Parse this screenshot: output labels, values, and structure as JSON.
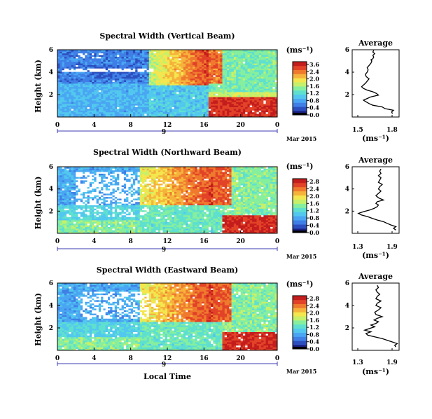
{
  "colormap": [
    "#1a1f80",
    "#2c4fbf",
    "#3f7fe6",
    "#4aa6f2",
    "#52c8ee",
    "#5fe0cf",
    "#86ef9e",
    "#c6f06a",
    "#f3e64e",
    "#f6b33c",
    "#ef7a2e",
    "#e24328",
    "#c41d1d"
  ],
  "fill_color": "#ffffff",
  "chart_data": [
    {
      "type": "heatmap",
      "title": "Spectral Width (Vertical Beam)",
      "xlabel": "",
      "ylabel": "Height (km)",
      "x_ticks": [
        "0",
        "4",
        "8",
        "12",
        "16",
        "20",
        "0"
      ],
      "x_range_hours": [
        0,
        24
      ],
      "y_ticks": [
        "6",
        "4",
        "2"
      ],
      "y_range_km": [
        0,
        6
      ],
      "date_label": "Mar 2015",
      "day_marker": "9",
      "colorbar": {
        "unit": "(ms⁻¹)",
        "ticks": [
          "3.6",
          "2.4",
          "2.0",
          "1.6",
          "1.2",
          "0.8",
          "0.4",
          "0.0"
        ],
        "range": [
          0,
          3.6
        ]
      },
      "pattern": "upper 0-10h near 0.4-0.8 with white no-data gaps at 4-5 km; 10-16h values 1.6-3.6 at 3-6 km; 17-24h red 2.8-3.6 below 2 km and yellow-green 1.2-1.6 above; lower levels 0-16h mostly 0.6-1.2"
    },
    {
      "type": "heatmap",
      "title": "Spectral Width (Northward Beam)",
      "xlabel": "",
      "ylabel": "Height (km)",
      "x_ticks": [
        "0",
        "4",
        "8",
        "12",
        "16",
        "20",
        "0"
      ],
      "x_range_hours": [
        0,
        24
      ],
      "y_ticks": [
        "6",
        "4",
        "2"
      ],
      "y_range_km": [
        0,
        6
      ],
      "date_label": "Mar 2015",
      "day_marker": "9",
      "colorbar": {
        "unit": "(ms⁻¹)",
        "ticks": [
          "2.8",
          "2.4",
          "2.0",
          "1.6",
          "1.2",
          "0.8",
          "0.4",
          "0.0"
        ],
        "range": [
          0,
          2.8
        ]
      },
      "pattern": "white no-data patches 1-9h at 3-6 km; 10-18h orange-red 2.0-2.8 at 3-6 km; 18-24h red 2.4-2.8 below 1.5 km; remainder 0.4-1.6"
    },
    {
      "type": "heatmap",
      "title": "Spectral Width (Eastward Beam)",
      "xlabel": "Local Time",
      "ylabel": "Height (km)",
      "x_ticks": [
        "0",
        "4",
        "8",
        "12",
        "16",
        "20",
        "0"
      ],
      "x_range_hours": [
        0,
        24
      ],
      "y_ticks": [
        "6",
        "4",
        "2"
      ],
      "y_range_km": [
        0,
        6
      ],
      "date_label": "Mar 2015",
      "day_marker": "9",
      "colorbar": {
        "unit": "(ms⁻¹)",
        "ticks": [
          "2.8",
          "2.4",
          "2.0",
          "1.6",
          "1.2",
          "0.8",
          "0.4",
          "0.0"
        ],
        "range": [
          0,
          2.8
        ]
      },
      "pattern": "white no-data patches 2-10h at 3-6 km; 10-18h orange 1.6-2.8 at 2.5-6 km; 16-24h red 2.4-2.8 below 1.5 km; remainder 0.4-1.6"
    },
    {
      "type": "line",
      "title": "Average",
      "xlabel": "(ms⁻¹)",
      "x_ticks": [
        "1.5",
        "1.8"
      ],
      "xlim": [
        1.4,
        1.9
      ],
      "y_ticks": [
        "6",
        "4",
        "2"
      ],
      "ylim": [
        0,
        6
      ],
      "x": [
        1.83,
        1.82,
        1.84,
        1.75,
        1.72,
        1.62,
        1.58,
        1.55,
        1.52,
        1.56,
        1.6,
        1.68,
        1.66,
        1.62,
        1.56,
        1.52,
        1.5,
        1.52,
        1.54,
        1.56,
        1.58,
        1.55,
        1.54,
        1.56,
        1.57,
        1.56,
        1.58,
        1.6,
        1.61,
        1.6,
        1.62,
        1.63,
        1.62,
        1.64,
        1.62,
        1.63
      ],
      "y": [
        0.3,
        0.45,
        0.6,
        0.75,
        0.9,
        1.05,
        1.2,
        1.35,
        1.5,
        1.65,
        1.8,
        1.95,
        2.1,
        2.25,
        2.4,
        2.55,
        2.7,
        2.85,
        3.0,
        3.2,
        3.4,
        3.6,
        3.8,
        4.0,
        4.2,
        4.4,
        4.6,
        4.8,
        5.0,
        5.1,
        5.2,
        5.35,
        5.5,
        5.65,
        5.8,
        5.95
      ]
    },
    {
      "type": "line",
      "title": "Average",
      "xlabel": "(ms⁻¹)",
      "x_ticks": [
        "1.3",
        "1.9"
      ],
      "xlim": [
        1.2,
        1.95
      ],
      "y_ticks": [
        "6",
        "4",
        "2"
      ],
      "ylim": [
        0,
        6
      ],
      "x": [
        1.9,
        1.86,
        1.9,
        1.82,
        1.76,
        1.7,
        1.6,
        1.52,
        1.45,
        1.35,
        1.3,
        1.38,
        1.48,
        1.55,
        1.6,
        1.62,
        1.58,
        1.6,
        1.7,
        1.62,
        1.58,
        1.62,
        1.66,
        1.62,
        1.64,
        1.68,
        1.62,
        1.64,
        1.66,
        1.62,
        1.66,
        1.64,
        1.66
      ],
      "y": [
        0.3,
        0.45,
        0.6,
        0.75,
        0.9,
        1.05,
        1.2,
        1.35,
        1.5,
        1.65,
        1.8,
        1.95,
        2.1,
        2.25,
        2.4,
        2.55,
        2.7,
        2.85,
        3.0,
        3.2,
        3.4,
        3.6,
        3.8,
        4.0,
        4.2,
        4.4,
        4.6,
        4.8,
        5.0,
        5.2,
        5.4,
        5.6,
        5.8
      ]
    },
    {
      "type": "line",
      "title": "Average",
      "xlabel": "(ms⁻¹)",
      "x_ticks": [
        "1.3",
        "1.9"
      ],
      "xlim": [
        1.2,
        1.95
      ],
      "y_ticks": [
        "6",
        "4",
        "2"
      ],
      "ylim": [
        0,
        6
      ],
      "x": [
        1.9,
        1.88,
        1.92,
        1.84,
        1.76,
        1.68,
        1.56,
        1.45,
        1.42,
        1.5,
        1.4,
        1.48,
        1.56,
        1.5,
        1.58,
        1.62,
        1.55,
        1.6,
        1.68,
        1.58,
        1.56,
        1.62,
        1.66,
        1.58,
        1.6,
        1.66,
        1.58,
        1.6,
        1.64,
        1.6,
        1.58,
        1.62,
        1.6
      ],
      "y": [
        0.3,
        0.45,
        0.6,
        0.75,
        0.9,
        1.05,
        1.2,
        1.35,
        1.5,
        1.65,
        1.8,
        1.95,
        2.1,
        2.25,
        2.4,
        2.55,
        2.7,
        2.85,
        3.0,
        3.2,
        3.4,
        3.6,
        3.8,
        4.0,
        4.2,
        4.4,
        4.6,
        4.8,
        5.0,
        5.2,
        5.4,
        5.6,
        5.8
      ]
    }
  ]
}
